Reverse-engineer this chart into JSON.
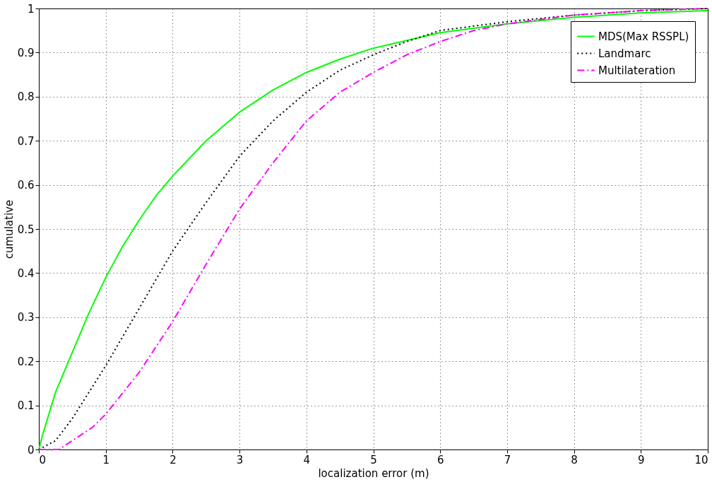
{
  "chart_data": {
    "type": "line",
    "xlabel": "localization error (m)",
    "ylabel": "cumulative",
    "xlim": [
      0,
      10
    ],
    "ylim": [
      0,
      1
    ],
    "xticks": [
      0,
      1,
      2,
      3,
      4,
      5,
      6,
      7,
      8,
      9,
      10
    ],
    "yticks": [
      0,
      0.1,
      0.2,
      0.3,
      0.4,
      0.5,
      0.6,
      0.7,
      0.8,
      0.9,
      1
    ],
    "grid": true,
    "legend": "top right",
    "marker": "none",
    "series": [
      {
        "name": "MDS(Max RSSPL)",
        "color": "#00ff00",
        "line_style": "solid",
        "x": [
          0,
          0.05,
          0.25,
          0.5,
          0.75,
          1,
          1.25,
          1.5,
          1.75,
          2,
          2.5,
          3,
          3.5,
          4,
          4.5,
          5,
          6,
          7,
          8,
          9,
          10
        ],
        "values": [
          0,
          0.03,
          0.13,
          0.22,
          0.31,
          0.39,
          0.46,
          0.52,
          0.575,
          0.62,
          0.7,
          0.765,
          0.815,
          0.855,
          0.885,
          0.91,
          0.945,
          0.965,
          0.98,
          0.99,
          0.995
        ]
      },
      {
        "name": "Landmarc",
        "color": "#000000",
        "line_style": "dotted",
        "x": [
          0,
          0.25,
          0.5,
          1,
          1.5,
          2,
          2.5,
          3,
          3.5,
          4,
          4.5,
          5,
          5.5,
          6,
          7,
          8,
          9,
          10
        ],
        "values": [
          0,
          0.02,
          0.07,
          0.19,
          0.32,
          0.45,
          0.56,
          0.665,
          0.745,
          0.81,
          0.86,
          0.895,
          0.925,
          0.95,
          0.97,
          0.985,
          0.995,
          1.0
        ]
      },
      {
        "name": "Multilateration",
        "color": "#ff00ff",
        "line_style": "dashdot",
        "x": [
          0,
          0.3,
          0.5,
          0.8,
          1,
          1.5,
          2,
          2.5,
          3,
          3.5,
          4,
          4.5,
          5,
          5.5,
          6,
          6.5,
          7,
          8,
          9,
          10
        ],
        "values": [
          0,
          0.0,
          0.02,
          0.05,
          0.08,
          0.175,
          0.29,
          0.42,
          0.545,
          0.65,
          0.745,
          0.81,
          0.855,
          0.895,
          0.925,
          0.95,
          0.965,
          0.985,
          0.995,
          1.0
        ]
      }
    ]
  }
}
